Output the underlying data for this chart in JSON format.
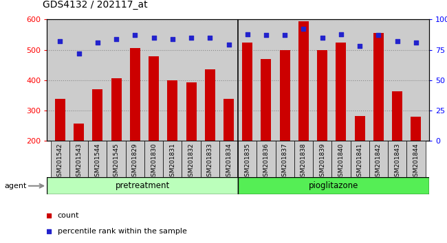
{
  "title": "GDS4132 / 202117_at",
  "categories": [
    "GSM201542",
    "GSM201543",
    "GSM201544",
    "GSM201545",
    "GSM201829",
    "GSM201830",
    "GSM201831",
    "GSM201832",
    "GSM201833",
    "GSM201834",
    "GSM201835",
    "GSM201836",
    "GSM201837",
    "GSM201838",
    "GSM201839",
    "GSM201840",
    "GSM201841",
    "GSM201842",
    "GSM201843",
    "GSM201844"
  ],
  "counts": [
    338,
    258,
    370,
    407,
    505,
    478,
    400,
    393,
    435,
    338,
    525,
    470,
    500,
    595,
    498,
    525,
    283,
    555,
    363,
    280
  ],
  "percentile": [
    82,
    72,
    81,
    84,
    87,
    85,
    84,
    85,
    85,
    79,
    88,
    87,
    87,
    92,
    85,
    88,
    78,
    87,
    82,
    81
  ],
  "bar_color": "#cc0000",
  "dot_color": "#2222cc",
  "pretreatment_color": "#bbffbb",
  "pioglitazone_color": "#55ee55",
  "ylim": [
    200,
    600
  ],
  "yticks": [
    200,
    300,
    400,
    500,
    600
  ],
  "y2lim": [
    0,
    100
  ],
  "y2ticks": [
    0,
    25,
    50,
    75,
    100
  ],
  "grid_color": "#888888",
  "bg_color": "#cccccc",
  "bar_width": 0.55,
  "n_pretreatment": 10,
  "n_pioglitazone": 10
}
